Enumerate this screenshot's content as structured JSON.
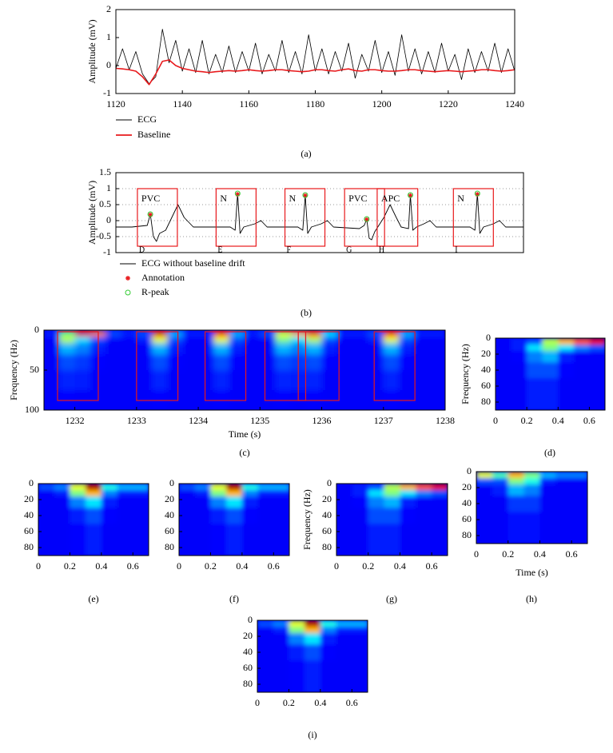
{
  "chart_data": [
    {
      "type": "line",
      "caption": "(a)",
      "ylabel": "Amplitude (mV)",
      "legend": "below",
      "xlim": [
        1120,
        1240
      ],
      "xticks": [
        1120,
        1140,
        1160,
        1180,
        1200,
        1220,
        1240
      ],
      "ylim": [
        -1,
        2
      ],
      "yticks": [
        -1,
        0,
        1,
        2
      ],
      "grid": false,
      "x": [
        1120,
        1122,
        1124,
        1126,
        1128,
        1130,
        1132,
        1134,
        1136,
        1138,
        1140,
        1142,
        1144,
        1146,
        1148,
        1150,
        1152,
        1154,
        1156,
        1158,
        1160,
        1162,
        1164,
        1166,
        1168,
        1170,
        1172,
        1174,
        1176,
        1178,
        1180,
        1182,
        1184,
        1186,
        1188,
        1190,
        1192,
        1194,
        1196,
        1198,
        1200,
        1202,
        1204,
        1206,
        1208,
        1210,
        1212,
        1214,
        1216,
        1218,
        1220,
        1222,
        1224,
        1226,
        1228,
        1230,
        1232,
        1234,
        1236,
        1238,
        1240
      ],
      "series": [
        {
          "name": "ECG",
          "color": "#000000",
          "values": [
            -0.1,
            0.6,
            -0.15,
            0.5,
            -0.3,
            -0.65,
            -0.4,
            1.3,
            0.1,
            0.9,
            -0.2,
            0.6,
            -0.25,
            0.9,
            -0.3,
            0.4,
            -0.25,
            0.7,
            -0.25,
            0.5,
            -0.2,
            0.8,
            -0.3,
            0.4,
            -0.2,
            0.9,
            -0.25,
            0.5,
            -0.3,
            1.1,
            -0.2,
            0.6,
            -0.3,
            0.5,
            -0.2,
            0.8,
            -0.45,
            0.4,
            -0.2,
            0.9,
            -0.25,
            0.5,
            -0.35,
            1.1,
            -0.2,
            0.6,
            -0.3,
            0.5,
            -0.25,
            0.8,
            -0.2,
            0.4,
            -0.5,
            0.6,
            -0.25,
            0.5,
            -0.2,
            0.8,
            -0.25,
            0.6,
            -0.2
          ]
        },
        {
          "name": "Baseline",
          "color": "#e8191c",
          "values": [
            -0.1,
            -0.12,
            -0.15,
            -0.2,
            -0.4,
            -0.68,
            -0.3,
            0.15,
            0.2,
            0.0,
            -0.1,
            -0.15,
            -0.2,
            -0.22,
            -0.25,
            -0.22,
            -0.2,
            -0.18,
            -0.2,
            -0.18,
            -0.15,
            -0.18,
            -0.2,
            -0.18,
            -0.15,
            -0.15,
            -0.18,
            -0.2,
            -0.22,
            -0.2,
            -0.15,
            -0.15,
            -0.18,
            -0.2,
            -0.15,
            -0.12,
            -0.18,
            -0.2,
            -0.15,
            -0.15,
            -0.18,
            -0.2,
            -0.2,
            -0.18,
            -0.15,
            -0.15,
            -0.18,
            -0.2,
            -0.22,
            -0.2,
            -0.18,
            -0.2,
            -0.22,
            -0.2,
            -0.18,
            -0.15,
            -0.15,
            -0.18,
            -0.2,
            -0.18,
            -0.15
          ]
        }
      ]
    },
    {
      "type": "line",
      "caption": "(b)",
      "ylabel": "Amplitude (mV)",
      "legend": "below",
      "xlim": [
        1231.44,
        1238.07
      ],
      "ylim": [
        -1,
        1.5
      ],
      "yticks": [
        -1,
        -0.5,
        0,
        0.5,
        1,
        1.5
      ],
      "grid": true,
      "x": [
        1231.44,
        1231.7,
        1231.95,
        1232.0,
        1232.05,
        1232.1,
        1232.15,
        1232.25,
        1232.35,
        1232.45,
        1232.55,
        1232.7,
        1233.3,
        1233.38,
        1233.42,
        1233.46,
        1233.52,
        1233.7,
        1233.8,
        1233.9,
        1234.4,
        1234.48,
        1234.52,
        1234.56,
        1234.62,
        1234.78,
        1234.88,
        1234.98,
        1235.4,
        1235.48,
        1235.52,
        1235.56,
        1235.6,
        1235.65,
        1235.8,
        1235.9,
        1236.0,
        1236.08,
        1236.2,
        1236.23,
        1236.27,
        1236.33,
        1236.45,
        1236.55,
        1236.65,
        1237.2,
        1237.28,
        1237.32,
        1237.36,
        1237.42,
        1237.58,
        1237.68,
        1237.78,
        1238.07
      ],
      "series": [
        {
          "name": "ECG without baseline drift",
          "color": "#000000",
          "values": [
            -0.2,
            -0.2,
            -0.15,
            0.2,
            -0.5,
            -0.65,
            -0.4,
            -0.3,
            0.1,
            0.5,
            0.1,
            -0.2,
            -0.2,
            -0.3,
            0.85,
            -0.4,
            -0.2,
            -0.1,
            0.0,
            -0.2,
            -0.2,
            -0.3,
            0.8,
            -0.4,
            -0.2,
            -0.1,
            0.0,
            -0.2,
            -0.25,
            -0.15,
            0.05,
            -0.55,
            -0.6,
            -0.35,
            0.1,
            0.5,
            0.1,
            -0.2,
            -0.25,
            0.8,
            -0.3,
            -0.2,
            -0.1,
            0.0,
            -0.2,
            -0.2,
            -0.3,
            0.85,
            -0.4,
            -0.2,
            -0.1,
            0.0,
            -0.2,
            -0.2
          ]
        },
        {
          "name": "Annotation",
          "color": "#e8191c",
          "marker": "star",
          "x": [
            1232.0,
            1233.42,
            1234.52,
            1235.52,
            1236.23,
            1237.32
          ],
          "values": [
            0.18,
            0.82,
            0.78,
            0.03,
            0.78,
            0.82
          ]
        },
        {
          "name": "R-peak",
          "color": "#33cc33",
          "marker": "circle",
          "x": [
            1232.0,
            1233.42,
            1234.52,
            1235.52,
            1236.23,
            1237.32
          ],
          "values": [
            0.2,
            0.85,
            0.8,
            0.05,
            0.8,
            0.85
          ]
        }
      ],
      "segment_ylim": [
        -0.8,
        1.0
      ],
      "segments": [
        {
          "label": "PVC",
          "letter": "D",
          "start": 1231.79,
          "end": 1232.44
        },
        {
          "label": "N",
          "letter": "E",
          "start": 1233.07,
          "end": 1233.72
        },
        {
          "label": "N",
          "letter": "F",
          "start": 1234.19,
          "end": 1234.84
        },
        {
          "label": "PVC",
          "letter": "G",
          "start": 1235.16,
          "end": 1235.81
        },
        {
          "label": "APC",
          "letter": "H",
          "start": 1235.69,
          "end": 1236.35
        },
        {
          "label": "N",
          "letter": "I",
          "start": 1236.93,
          "end": 1237.58
        }
      ]
    },
    {
      "type": "heatmap",
      "caption": "(c)",
      "xlabel": "Time (s)",
      "ylabel": "Frequency (Hz)",
      "colormap": "jet",
      "zlim": [
        0,
        1
      ],
      "xlim": [
        1231.5,
        1238
      ],
      "xticks": [
        1232,
        1233,
        1234,
        1235,
        1236,
        1237,
        1238
      ],
      "ylim": [
        0,
        100
      ],
      "y_reversed": true,
      "yticks": [
        0,
        50,
        100
      ],
      "x_bins": [
        1231.5,
        1231.75,
        1232,
        1232.25,
        1232.5,
        1232.75,
        1233,
        1233.25,
        1233.5,
        1233.75,
        1234,
        1234.25,
        1234.5,
        1234.75,
        1235,
        1235.25,
        1235.5,
        1235.75,
        1236,
        1236.25,
        1236.5,
        1236.75,
        1237,
        1237.25,
        1237.5,
        1237.75,
        1238
      ],
      "y_bins": [
        0,
        8,
        16,
        30,
        50,
        75,
        100
      ],
      "z": [
        [
          0.15,
          0.5,
          0.9,
          0.75,
          0.2,
          0.15,
          0.2,
          0.9,
          0.3,
          0.15,
          0.15,
          0.85,
          0.3,
          0.15,
          0.2,
          0.6,
          0.7,
          0.8,
          0.35,
          0.15,
          0.15,
          0.2,
          0.85,
          0.3,
          0.15,
          0.15
        ],
        [
          0.12,
          0.55,
          0.35,
          0.2,
          0.12,
          0.12,
          0.15,
          0.6,
          0.2,
          0.12,
          0.12,
          0.6,
          0.2,
          0.12,
          0.12,
          0.5,
          0.35,
          0.55,
          0.2,
          0.12,
          0.12,
          0.15,
          0.6,
          0.2,
          0.12,
          0.12
        ],
        [
          0.12,
          0.3,
          0.25,
          0.15,
          0.12,
          0.12,
          0.12,
          0.3,
          0.15,
          0.12,
          0.12,
          0.3,
          0.15,
          0.12,
          0.12,
          0.3,
          0.25,
          0.3,
          0.15,
          0.12,
          0.12,
          0.12,
          0.3,
          0.15,
          0.12,
          0.12
        ],
        [
          0.12,
          0.2,
          0.18,
          0.13,
          0.12,
          0.12,
          0.12,
          0.2,
          0.13,
          0.12,
          0.12,
          0.2,
          0.13,
          0.12,
          0.12,
          0.2,
          0.18,
          0.2,
          0.13,
          0.12,
          0.12,
          0.12,
          0.2,
          0.13,
          0.12,
          0.12
        ],
        [
          0.12,
          0.16,
          0.15,
          0.12,
          0.12,
          0.12,
          0.12,
          0.16,
          0.12,
          0.12,
          0.12,
          0.16,
          0.12,
          0.12,
          0.12,
          0.16,
          0.15,
          0.16,
          0.12,
          0.12,
          0.12,
          0.12,
          0.16,
          0.12,
          0.12,
          0.12
        ],
        [
          0.12,
          0.13,
          0.12,
          0.12,
          0.12,
          0.12,
          0.12,
          0.13,
          0.12,
          0.12,
          0.12,
          0.13,
          0.12,
          0.12,
          0.12,
          0.13,
          0.12,
          0.13,
          0.12,
          0.12,
          0.12,
          0.12,
          0.13,
          0.12,
          0.12,
          0.12
        ]
      ],
      "segment_ylim": [
        2,
        88
      ],
      "segments": [
        {
          "start": 1231.72,
          "end": 1232.38
        },
        {
          "start": 1233.0,
          "end": 1233.67
        },
        {
          "start": 1234.11,
          "end": 1234.77
        },
        {
          "start": 1235.08,
          "end": 1235.74
        },
        {
          "start": 1235.62,
          "end": 1236.28
        },
        {
          "start": 1236.85,
          "end": 1237.51
        }
      ]
    },
    {
      "type": "heatmap",
      "caption": "(d)",
      "ylabel": "Frequency (Hz)",
      "colormap": "jet",
      "zlim": [
        0,
        1
      ],
      "xlim": [
        0,
        0.7
      ],
      "xticks": [
        0,
        0.2,
        0.4,
        0.6
      ],
      "ylim": [
        0,
        90
      ],
      "y_reversed": true,
      "yticks": [
        0,
        20,
        40,
        60,
        80
      ],
      "x_bins": [
        0,
        0.1,
        0.2,
        0.3,
        0.4,
        0.5,
        0.6,
        0.7
      ],
      "y_bins": [
        0,
        8,
        16,
        30,
        50,
        90
      ],
      "z": [
        [
          0.12,
          0.15,
          0.2,
          0.55,
          0.7,
          0.8,
          0.9
        ],
        [
          0.12,
          0.15,
          0.35,
          0.5,
          0.35,
          0.25,
          0.2
        ],
        [
          0.12,
          0.13,
          0.25,
          0.3,
          0.15,
          0.12,
          0.12
        ],
        [
          0.12,
          0.12,
          0.2,
          0.2,
          0.13,
          0.12,
          0.12
        ],
        [
          0.12,
          0.12,
          0.15,
          0.15,
          0.12,
          0.12,
          0.12
        ]
      ]
    },
    {
      "type": "heatmap",
      "caption": "(e)",
      "colormap": "jet",
      "zlim": [
        0,
        1
      ],
      "xlim": [
        0,
        0.7
      ],
      "xticks": [
        0,
        0.2,
        0.4,
        0.6
      ],
      "ylim": [
        0,
        90
      ],
      "y_reversed": true,
      "yticks": [
        0,
        20,
        40,
        60,
        80
      ],
      "x_bins": [
        0,
        0.1,
        0.2,
        0.3,
        0.4,
        0.5,
        0.6,
        0.7
      ],
      "y_bins": [
        0,
        8,
        16,
        30,
        50,
        90
      ],
      "z": [
        [
          0.2,
          0.25,
          0.6,
          0.95,
          0.4,
          0.3,
          0.3
        ],
        [
          0.12,
          0.15,
          0.5,
          0.7,
          0.25,
          0.15,
          0.15
        ],
        [
          0.12,
          0.12,
          0.25,
          0.35,
          0.15,
          0.12,
          0.12
        ],
        [
          0.12,
          0.12,
          0.15,
          0.2,
          0.13,
          0.12,
          0.12
        ],
        [
          0.12,
          0.12,
          0.13,
          0.15,
          0.12,
          0.12,
          0.12
        ]
      ]
    },
    {
      "type": "heatmap",
      "caption": "(f)",
      "colormap": "jet",
      "zlim": [
        0,
        1
      ],
      "xlim": [
        0,
        0.7
      ],
      "xticks": [
        0,
        0.2,
        0.4,
        0.6
      ],
      "ylim": [
        0,
        90
      ],
      "y_reversed": true,
      "yticks": [
        0,
        20,
        40,
        60,
        80
      ],
      "x_bins": [
        0,
        0.1,
        0.2,
        0.3,
        0.4,
        0.5,
        0.6,
        0.7
      ],
      "y_bins": [
        0,
        8,
        16,
        30,
        50,
        90
      ],
      "z": [
        [
          0.2,
          0.25,
          0.6,
          0.95,
          0.4,
          0.3,
          0.3
        ],
        [
          0.12,
          0.15,
          0.5,
          0.7,
          0.25,
          0.15,
          0.15
        ],
        [
          0.12,
          0.12,
          0.25,
          0.35,
          0.15,
          0.12,
          0.12
        ],
        [
          0.12,
          0.12,
          0.15,
          0.2,
          0.13,
          0.12,
          0.12
        ],
        [
          0.12,
          0.12,
          0.13,
          0.15,
          0.12,
          0.12,
          0.12
        ]
      ]
    },
    {
      "type": "heatmap",
      "caption": "(g)",
      "ylabel": "Frequency (Hz)",
      "colormap": "jet",
      "zlim": [
        0,
        1
      ],
      "xlim": [
        0,
        0.7
      ],
      "xticks": [
        0,
        0.2,
        0.4,
        0.6
      ],
      "ylim": [
        0,
        90
      ],
      "y_reversed": true,
      "yticks": [
        0,
        20,
        40,
        60,
        80
      ],
      "x_bins": [
        0,
        0.1,
        0.2,
        0.3,
        0.4,
        0.5,
        0.6,
        0.7
      ],
      "y_bins": [
        0,
        8,
        16,
        30,
        50,
        90
      ],
      "z": [
        [
          0.12,
          0.15,
          0.2,
          0.55,
          0.7,
          0.8,
          0.9
        ],
        [
          0.12,
          0.15,
          0.35,
          0.5,
          0.35,
          0.25,
          0.2
        ],
        [
          0.12,
          0.13,
          0.25,
          0.3,
          0.15,
          0.12,
          0.12
        ],
        [
          0.12,
          0.12,
          0.2,
          0.2,
          0.13,
          0.12,
          0.12
        ],
        [
          0.12,
          0.12,
          0.15,
          0.15,
          0.12,
          0.12,
          0.12
        ]
      ]
    },
    {
      "type": "heatmap",
      "caption": "(h)",
      "xlabel": "Time (s)",
      "colormap": "jet",
      "zlim": [
        0,
        1
      ],
      "xlim": [
        0,
        0.7
      ],
      "xticks": [
        0,
        0.2,
        0.4,
        0.6
      ],
      "ylim": [
        0,
        90
      ],
      "y_reversed": true,
      "yticks": [
        0,
        20,
        40,
        60,
        80
      ],
      "x_bins": [
        0,
        0.1,
        0.2,
        0.3,
        0.4,
        0.5,
        0.6,
        0.7
      ],
      "y_bins": [
        0,
        8,
        16,
        30,
        50,
        90
      ],
      "z": [
        [
          0.6,
          0.45,
          0.7,
          0.5,
          0.3,
          0.25,
          0.25
        ],
        [
          0.2,
          0.2,
          0.5,
          0.4,
          0.15,
          0.12,
          0.12
        ],
        [
          0.12,
          0.15,
          0.3,
          0.25,
          0.12,
          0.12,
          0.12
        ],
        [
          0.12,
          0.12,
          0.18,
          0.18,
          0.12,
          0.12,
          0.12
        ],
        [
          0.12,
          0.12,
          0.14,
          0.14,
          0.12,
          0.12,
          0.12
        ]
      ]
    },
    {
      "type": "heatmap",
      "caption": "(i)",
      "colormap": "jet",
      "zlim": [
        0,
        1
      ],
      "xlim": [
        0,
        0.7
      ],
      "xticks": [
        0,
        0.2,
        0.4,
        0.6
      ],
      "ylim": [
        0,
        90
      ],
      "y_reversed": true,
      "yticks": [
        0,
        20,
        40,
        60,
        80
      ],
      "x_bins": [
        0,
        0.1,
        0.2,
        0.3,
        0.4,
        0.5,
        0.6,
        0.7
      ],
      "y_bins": [
        0,
        8,
        16,
        30,
        50,
        90
      ],
      "z": [
        [
          0.2,
          0.25,
          0.6,
          0.95,
          0.4,
          0.3,
          0.3
        ],
        [
          0.12,
          0.15,
          0.5,
          0.7,
          0.25,
          0.15,
          0.15
        ],
        [
          0.12,
          0.12,
          0.25,
          0.35,
          0.15,
          0.12,
          0.12
        ],
        [
          0.12,
          0.12,
          0.15,
          0.2,
          0.13,
          0.12,
          0.12
        ],
        [
          0.12,
          0.12,
          0.13,
          0.15,
          0.12,
          0.12,
          0.12
        ]
      ]
    }
  ]
}
